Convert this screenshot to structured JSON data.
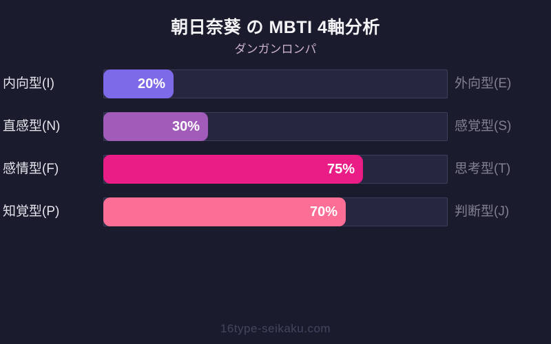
{
  "header": {
    "title": "朝日奈葵 の MBTI 4軸分析",
    "subtitle": "ダンガンロンパ"
  },
  "watermark": "16type-seikaku.com",
  "chart_data": {
    "type": "bar",
    "orientation": "horizontal",
    "title": "朝日奈葵 の MBTI 4軸分析",
    "subtitle": "ダンガンロンパ",
    "xlim": [
      0,
      100
    ],
    "grid": false,
    "legend": false,
    "rows": [
      {
        "left_label": "内向型(I)",
        "right_label": "外向型(E)",
        "value": 20,
        "value_label": "20%",
        "color": "#7d6ae8"
      },
      {
        "left_label": "直感型(N)",
        "right_label": "感覚型(S)",
        "value": 30,
        "value_label": "30%",
        "color": "#a15cba"
      },
      {
        "left_label": "感情型(F)",
        "right_label": "思考型(T)",
        "value": 75,
        "value_label": "75%",
        "color": "#ea1d86"
      },
      {
        "left_label": "知覚型(P)",
        "right_label": "判断型(J)",
        "value": 70,
        "value_label": "70%",
        "color": "#fc6e96"
      }
    ],
    "colors": {
      "background": "#1b1b2e",
      "track": "#262640",
      "track_border": "#3e3e5a",
      "value_text": "#ffffff",
      "left_label_text": "#e4e4ec",
      "right_label_text": "#80808f"
    }
  }
}
